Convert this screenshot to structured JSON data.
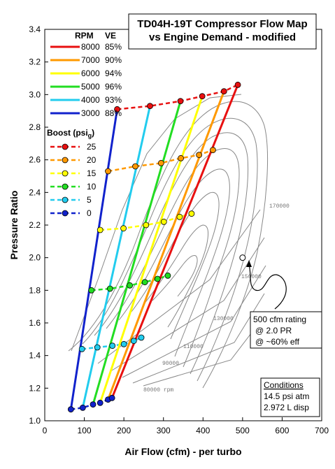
{
  "chart_data": {
    "type": "line",
    "title_lines": [
      "TD04H-19T Compressor Flow Map",
      "vs Engine Demand - modified"
    ],
    "xlabel": "Air Flow (cfm) - per turbo",
    "ylabel": "Pressure Ratio",
    "xlim": [
      0,
      700
    ],
    "ylim": [
      1.0,
      3.4
    ],
    "x_ticks": [
      0,
      100,
      200,
      300,
      400,
      500,
      600,
      700
    ],
    "y_ticks": [
      "1.0",
      "1.2",
      "1.4",
      "1.6",
      "1.8",
      "2.0",
      "2.2",
      "2.4",
      "2.6",
      "2.8",
      "3.0",
      "3.2",
      "3.4"
    ],
    "legend_rpm": {
      "header_rpm": "RPM",
      "header_ve": "VE",
      "entries": [
        {
          "rpm": "8000",
          "ve": "85%",
          "color": "#e81010"
        },
        {
          "rpm": "7000",
          "ve": "90%",
          "color": "#ff9900"
        },
        {
          "rpm": "6000",
          "ve": "94%",
          "color": "#ffff00"
        },
        {
          "rpm": "5000",
          "ve": "96%",
          "color": "#22dd22"
        },
        {
          "rpm": "4000",
          "ve": "93%",
          "color": "#22ccee"
        },
        {
          "rpm": "3000",
          "ve": "88%",
          "color": "#1122cc"
        }
      ]
    },
    "legend_boost": {
      "header": "Boost (psi",
      "header_sub": "g",
      "header_end": ")",
      "entries": [
        {
          "boost": "25",
          "color": "#e81010"
        },
        {
          "boost": "20",
          "color": "#ff9900"
        },
        {
          "boost": "15",
          "color": "#ffff00"
        },
        {
          "boost": "10",
          "color": "#22dd22"
        },
        {
          "boost": "5",
          "color": "#22ccee"
        },
        {
          "boost": "0",
          "color": "#1122cc"
        }
      ]
    },
    "rpm_series": [
      {
        "name": "8000",
        "color": "#e81010",
        "x": [
          170,
          488
        ],
        "y": [
          1.14,
          3.06
        ]
      },
      {
        "name": "7000",
        "color": "#ff9900",
        "x": [
          160,
          453
        ],
        "y": [
          1.13,
          3.02
        ]
      },
      {
        "name": "6000",
        "color": "#ffff00",
        "x": [
          140,
          398
        ],
        "y": [
          1.11,
          2.99
        ]
      },
      {
        "name": "5000",
        "color": "#22dd22",
        "x": [
          122,
          343
        ],
        "y": [
          1.1,
          2.96
        ]
      },
      {
        "name": "4000",
        "color": "#22ccee",
        "x": [
          96,
          266
        ],
        "y": [
          1.08,
          2.93
        ]
      },
      {
        "name": "3000",
        "color": "#1122cc",
        "x": [
          66,
          183
        ],
        "y": [
          1.07,
          2.91
        ]
      }
    ],
    "boost_series": [
      {
        "boost": "25",
        "color": "#e81010",
        "x": [
          183,
          266,
          343,
          398,
          453,
          488
        ],
        "y": [
          2.91,
          2.93,
          2.96,
          2.99,
          3.02,
          3.06
        ]
      },
      {
        "boost": "20",
        "color": "#ff9900",
        "x": [
          160,
          229,
          294,
          344,
          390,
          425
        ],
        "y": [
          2.53,
          2.56,
          2.58,
          2.61,
          2.63,
          2.66
        ]
      },
      {
        "boost": "15",
        "color": "#ffff00",
        "x": [
          140,
          199,
          256,
          301,
          341,
          371
        ],
        "y": [
          2.17,
          2.18,
          2.2,
          2.22,
          2.25,
          2.27
        ]
      },
      {
        "boost": "10",
        "color": "#22dd22",
        "x": [
          118,
          165,
          215,
          253,
          285,
          311
        ],
        "y": [
          1.8,
          1.81,
          1.83,
          1.85,
          1.87,
          1.89
        ]
      },
      {
        "boost": "5",
        "color": "#22ccee",
        "x": [
          94,
          133,
          171,
          200,
          225,
          244
        ],
        "y": [
          1.44,
          1.45,
          1.46,
          1.47,
          1.49,
          1.51
        ]
      },
      {
        "boost": "0",
        "color": "#1122cc",
        "x": [
          66,
          96,
          122,
          140,
          160,
          170
        ],
        "y": [
          1.07,
          1.08,
          1.1,
          1.11,
          1.13,
          1.14
        ]
      }
    ],
    "map_labels": [
      "170000",
      "150000",
      "130000",
      "110000",
      "90000",
      "80000 rpm"
    ],
    "annotation": {
      "point": {
        "x": 500,
        "y": 2.0
      },
      "lines": [
        "500 cfm rating",
        "@ 2.0 PR",
        "@ ~60% eff"
      ]
    },
    "conditions": {
      "title": "Conditions",
      "lines": [
        "14.5 psi atm",
        "2.972 L disp"
      ]
    }
  }
}
